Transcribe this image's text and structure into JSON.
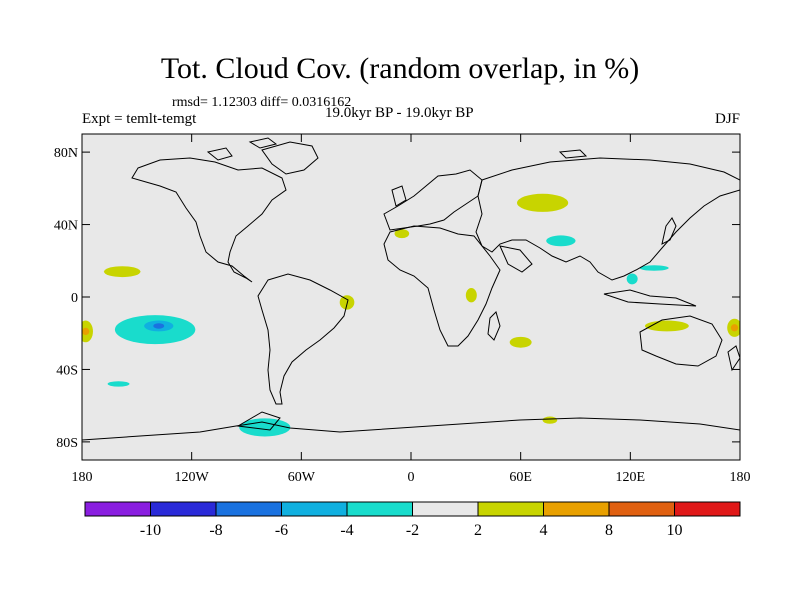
{
  "title": "Tot. Cloud Cov. (random overlap, in %)",
  "stats_line": "rmsd= 1.12303 diff= 0.0316162",
  "expt_label": "Expt = temlt-temgt",
  "period_label": "19.0kyr BP - 19.0kyr BP",
  "season_label": "DJF",
  "map": {
    "projection": "cylindrical equidistant",
    "lon_range": [
      -180,
      180
    ],
    "lat_range": [
      -90,
      90
    ],
    "background_color": "#e8e8e8",
    "lat_ticks": [
      {
        "value": 80,
        "label": "80N"
      },
      {
        "value": 40,
        "label": "40N"
      },
      {
        "value": 0,
        "label": "0"
      },
      {
        "value": -40,
        "label": "40S"
      },
      {
        "value": -80,
        "label": "80S"
      }
    ],
    "lon_ticks": [
      {
        "value": -180,
        "label": "180"
      },
      {
        "value": -120,
        "label": "120W"
      },
      {
        "value": -60,
        "label": "60W"
      },
      {
        "value": 0,
        "label": "0"
      },
      {
        "value": 60,
        "label": "60E"
      },
      {
        "value": 120,
        "label": "120E"
      },
      {
        "value": 180,
        "label": "180"
      }
    ]
  },
  "colorbar": {
    "colors": [
      "#8a1ee0",
      "#2a2ad8",
      "#1a72e0",
      "#10b0e0",
      "#19dccc",
      "#e8e8e8",
      "#c8d400",
      "#e8a000",
      "#e06010",
      "#e01818"
    ],
    "labels": [
      "-10",
      "-8",
      "-6",
      "-4",
      "-2",
      "2",
      "4",
      "8",
      "10"
    ]
  },
  "anomaly_regions": [
    {
      "name": "n-pacific-positive",
      "lon": -158,
      "lat": 14,
      "rx": 10,
      "ry": 3,
      "color": "#c8d400"
    },
    {
      "name": "s-pacific-negative",
      "lon": -140,
      "lat": -18,
      "rx": 22,
      "ry": 8,
      "color": "#19dccc"
    },
    {
      "name": "s-pacific-core",
      "lon": -138,
      "lat": -16,
      "rx": 8,
      "ry": 3,
      "color": "#10b0e0"
    },
    {
      "name": "s-pacific-center",
      "lon": -138,
      "lat": -16,
      "rx": 3,
      "ry": 1.5,
      "color": "#1a72e0"
    },
    {
      "name": "dateline-west-positive",
      "lon": -178,
      "lat": -19,
      "rx": 4,
      "ry": 6,
      "color": "#c8d400"
    },
    {
      "name": "dateline-west-core",
      "lon": -178,
      "lat": -19,
      "rx": 2,
      "ry": 2,
      "color": "#e8a000"
    },
    {
      "name": "se-pacific-negative",
      "lon": -160,
      "lat": -48,
      "rx": 6,
      "ry": 1.5,
      "color": "#19dccc"
    },
    {
      "name": "s-ocean-negative",
      "lon": -80,
      "lat": -72,
      "rx": 14,
      "ry": 5,
      "color": "#19dccc"
    },
    {
      "name": "siberia-positive",
      "lon": 72,
      "lat": 52,
      "rx": 14,
      "ry": 5,
      "color": "#c8d400"
    },
    {
      "name": "mediterranean-positive",
      "lon": -5,
      "lat": 35,
      "rx": 4,
      "ry": 2.5,
      "color": "#c8d400"
    },
    {
      "name": "asia-negative",
      "lon": 82,
      "lat": 31,
      "rx": 8,
      "ry": 3,
      "color": "#19dccc"
    },
    {
      "name": "w-pacific-negative",
      "lon": 133,
      "lat": 16,
      "rx": 8,
      "ry": 1.5,
      "color": "#19dccc"
    },
    {
      "name": "philippines-negative",
      "lon": 121,
      "lat": 10,
      "rx": 3,
      "ry": 3,
      "color": "#19dccc"
    },
    {
      "name": "africa-positive",
      "lon": 33,
      "lat": 1,
      "rx": 3,
      "ry": 4,
      "color": "#c8d400"
    },
    {
      "name": "atlantic-positive",
      "lon": -35,
      "lat": -3,
      "rx": 4,
      "ry": 4,
      "color": "#c8d400"
    },
    {
      "name": "indian-ocean-positive",
      "lon": 60,
      "lat": -25,
      "rx": 6,
      "ry": 3,
      "color": "#c8d400"
    },
    {
      "name": "australia-positive",
      "lon": 140,
      "lat": -16,
      "rx": 12,
      "ry": 3,
      "color": "#c8d400"
    },
    {
      "name": "dateline-east-positive",
      "lon": 177,
      "lat": -17,
      "rx": 4,
      "ry": 5,
      "color": "#c8d400"
    },
    {
      "name": "dateline-east-core",
      "lon": 177,
      "lat": -17,
      "rx": 2,
      "ry": 2,
      "color": "#e8a000"
    },
    {
      "name": "s-indian-positive",
      "lon": 76,
      "lat": -68,
      "rx": 4,
      "ry": 2,
      "color": "#c8d400"
    }
  ]
}
